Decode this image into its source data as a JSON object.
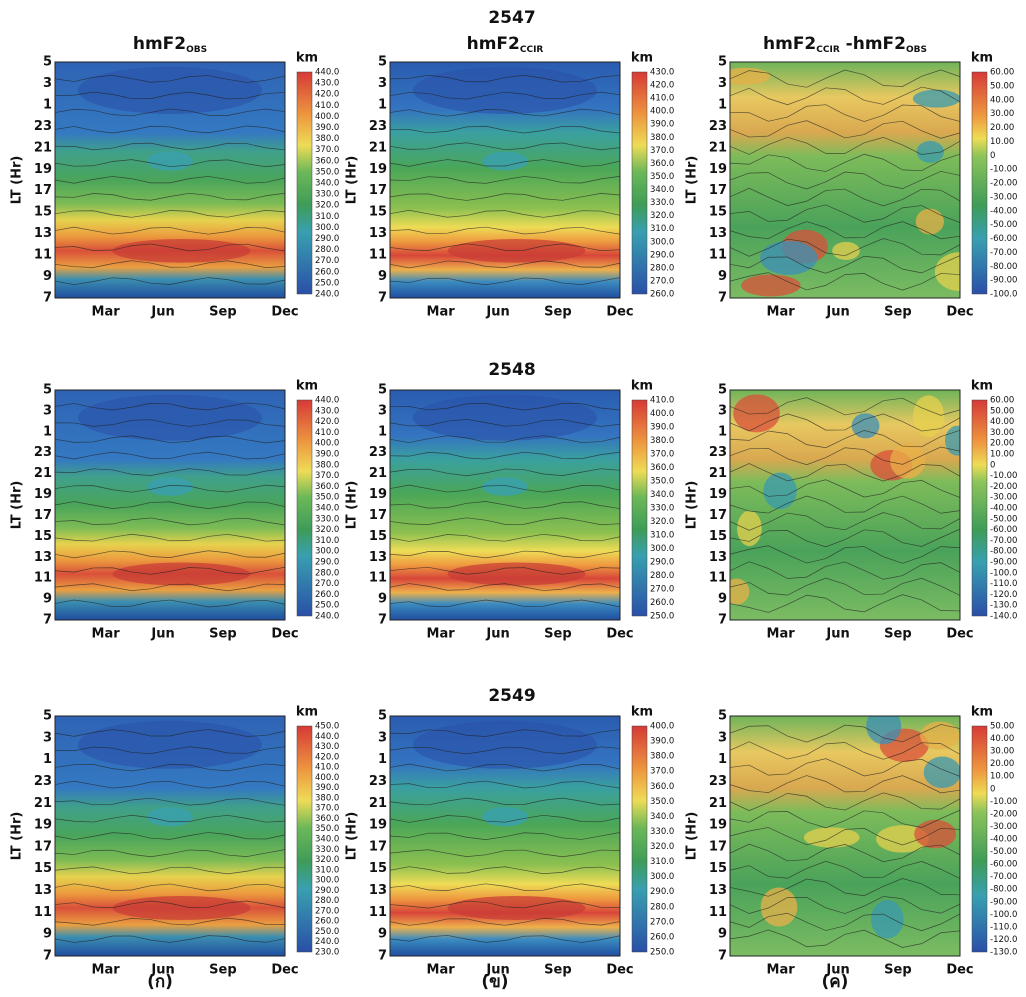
{
  "figure": {
    "y_label": "LT (Hr)",
    "y_ticks": [
      "5",
      "3",
      "1",
      "23",
      "21",
      "19",
      "17",
      "15",
      "13",
      "11",
      "9",
      "7"
    ],
    "x_ticks": [
      "Mar",
      "Jun",
      "Sep",
      "Dec"
    ],
    "unit": "km",
    "columns": [
      {
        "title": [
          "hmF2",
          "OBS"
        ],
        "letter": "(ก)"
      },
      {
        "title": [
          "hmF2",
          "CCIR"
        ],
        "letter": "(ข)"
      },
      {
        "title": [
          "hmF2",
          "CCIR",
          " -hmF2",
          "OBS"
        ],
        "letter": "(ค)"
      }
    ],
    "rows": [
      {
        "year": "2547",
        "colorbars": [
          [
            "440.0",
            "430.0",
            "420.0",
            "410.0",
            "400.0",
            "390.0",
            "380.0",
            "370.0",
            "360.0",
            "350.0",
            "340.0",
            "330.0",
            "320.0",
            "310.0",
            "300.0",
            "290.0",
            "280.0",
            "270.0",
            "260.0",
            "250.0",
            "240.0"
          ],
          [
            "430.0",
            "420.0",
            "410.0",
            "400.0",
            "390.0",
            "380.0",
            "370.0",
            "360.0",
            "350.0",
            "340.0",
            "330.0",
            "320.0",
            "310.0",
            "300.0",
            "290.0",
            "280.0",
            "270.0",
            "260.0"
          ],
          [
            "60.00",
            "50.00",
            "40.00",
            "30.00",
            "20.00",
            "10.00",
            "0",
            "-10.00",
            "-20.00",
            "-30.00",
            "-40.00",
            "-50.00",
            "-60.00",
            "-70.00",
            "-80.00",
            "-90.00",
            "-100.0"
          ]
        ]
      },
      {
        "year": "2548",
        "colorbars": [
          [
            "440.0",
            "430.0",
            "420.0",
            "410.0",
            "400.0",
            "390.0",
            "380.0",
            "370.0",
            "360.0",
            "350.0",
            "340.0",
            "330.0",
            "320.0",
            "310.0",
            "300.0",
            "290.0",
            "280.0",
            "270.0",
            "260.0",
            "250.0",
            "240.0"
          ],
          [
            "410.0",
            "400.0",
            "390.0",
            "380.0",
            "370.0",
            "360.0",
            "350.0",
            "340.0",
            "330.0",
            "320.0",
            "310.0",
            "300.0",
            "290.0",
            "280.0",
            "270.0",
            "260.0",
            "250.0"
          ],
          [
            "60.00",
            "50.00",
            "40.00",
            "30.00",
            "20.00",
            "10.00",
            "0",
            "-10.00",
            "-20.00",
            "-30.00",
            "-40.00",
            "-50.00",
            "-60.00",
            "-70.00",
            "-80.00",
            "-90.00",
            "-100.0",
            "-110.0",
            "-120.0",
            "-130.0",
            "-140.0"
          ]
        ]
      },
      {
        "year": "2549",
        "colorbars": [
          [
            "450.0",
            "440.0",
            "430.0",
            "420.0",
            "410.0",
            "400.0",
            "390.0",
            "380.0",
            "370.0",
            "360.0",
            "350.0",
            "340.0",
            "330.0",
            "320.0",
            "310.0",
            "300.0",
            "290.0",
            "280.0",
            "270.0",
            "260.0",
            "250.0",
            "240.0",
            "230.0"
          ],
          [
            "400.0",
            "390.0",
            "380.0",
            "370.0",
            "360.0",
            "350.0",
            "340.0",
            "330.0",
            "320.0",
            "310.0",
            "300.0",
            "290.0",
            "280.0",
            "270.0",
            "260.0",
            "250.0"
          ],
          [
            "50.00",
            "40.00",
            "30.00",
            "20.00",
            "10.00",
            "0",
            "-10.00",
            "-20.00",
            "-30.00",
            "-40.00",
            "-50.00",
            "-60.00",
            "-70.00",
            "-80.00",
            "-90.00",
            "-100.0",
            "-110.0",
            "-120.0",
            "-130.0"
          ]
        ]
      }
    ]
  }
}
